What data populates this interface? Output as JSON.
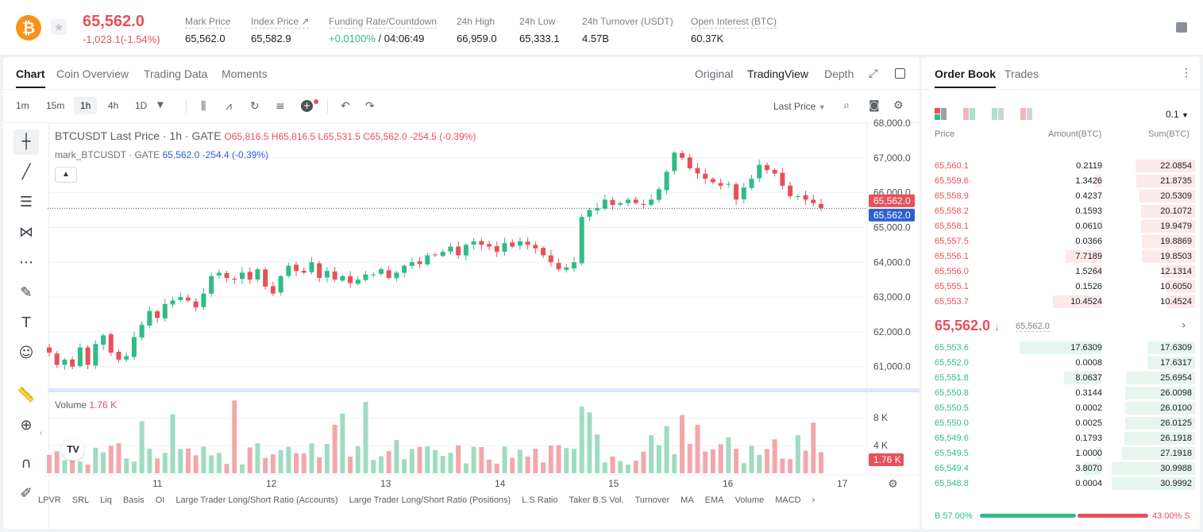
{
  "ticker": {
    "icon": "bitcoin-icon",
    "last_price": "65,562.0",
    "change": "-1,023.1(-1.54%)",
    "stats": [
      {
        "label": "Mark Price",
        "value": "65,562.0"
      },
      {
        "label": "Index Price ↗",
        "value": "65,582.9"
      },
      {
        "label": "Funding Rate/Countdown",
        "value_green": "+0.0100%",
        "value": " / 04:06:49"
      },
      {
        "label": "24h High",
        "value": "66,959.0"
      },
      {
        "label": "24h Low",
        "value": "65,333.1"
      },
      {
        "label": "24h Turnover (USDT)",
        "value": "4.57B"
      },
      {
        "label": "Open Interest (BTC)",
        "value": "60.37K"
      }
    ]
  },
  "chart_panel": {
    "tabs": [
      "Chart",
      "Coin Overview",
      "Trading Data",
      "Moments"
    ],
    "views": [
      "Original",
      "TradingView",
      "Depth"
    ],
    "active_view": "TradingView",
    "timeframes": [
      "1m",
      "15m",
      "1h",
      "4h",
      "1D"
    ],
    "active_timeframe": "1h",
    "price_type": "Last Price",
    "legend_title": "BTCUSDT Last Price · 1h · GATE",
    "legend_ohlc": "O65,816.5 H65,816.5 L65,531.5 C65,562.0 -254.5 (-0.39%)",
    "legend_mark_label": "mark_BTCUSDT · GATE",
    "legend_mark_values": "65,562.0 -254.4 (-0.39%)",
    "volume_label": "Volume",
    "volume_value": "1.76 K",
    "price_ticks": [
      "68,000.0",
      "67,000.0",
      "66,000.0",
      "65,000.0",
      "64,000.0",
      "63,000.0",
      "62,000.0",
      "61,000.0"
    ],
    "last_price_tag": "65,562.0",
    "mark_price_tag": "65,562.0",
    "volume_ticks": [
      "8 K",
      "4 K"
    ],
    "volume_tag": "1.76 K",
    "date_ticks": [
      "11",
      "12",
      "13",
      "14",
      "15",
      "16",
      "17"
    ],
    "indicators": [
      "LPVR",
      "SRL",
      "Liq",
      "Basis",
      "OI",
      "Large Trader Long/Short Ratio (Accounts)",
      "Large Trader Long/Short Ratio (Positions)",
      "L.S Ratio",
      "Taker B.S Vol.",
      "Turnover",
      "MA",
      "EMA",
      "Volume",
      "MACD"
    ]
  },
  "chart_data": {
    "type": "candlestick",
    "x_ticks": [
      "11",
      "12",
      "13",
      "14",
      "15",
      "16",
      "17"
    ],
    "ylim": [
      60400,
      68000
    ],
    "close_path": [
      61400,
      61050,
      61200,
      61000,
      61550,
      61050,
      61650,
      61900,
      61400,
      61200,
      61300,
      61850,
      62200,
      62600,
      62400,
      62800,
      62900,
      63000,
      62900,
      62700,
      63100,
      63600,
      63700,
      63550,
      63500,
      63700,
      63500,
      63800,
      63300,
      63100,
      63600,
      63900,
      63750,
      63700,
      64000,
      63550,
      63750,
      63500,
      63600,
      63400,
      63500,
      63650,
      63650,
      63800,
      63550,
      63700,
      63900,
      64000,
      63950,
      64200,
      64200,
      64300,
      64450,
      64200,
      64500,
      64600,
      64500,
      64450,
      64300,
      64550,
      64450,
      64600,
      64500,
      64400,
      64200,
      64000,
      63800,
      63850,
      64000,
      65300,
      65500,
      65550,
      65800,
      65650,
      65700,
      65800,
      65700,
      65650,
      65800,
      66100,
      66600,
      67150,
      67000,
      66700,
      66550,
      66400,
      66300,
      66200,
      66250,
      65800,
      66150,
      66400,
      66800,
      66650,
      66550,
      66200,
      65900,
      65900,
      65800,
      65700,
      65562
    ],
    "volume_ticks": [
      "8 K",
      "4 K"
    ]
  },
  "order_book": {
    "tabs": [
      "Order Book",
      "Trades"
    ],
    "precision": "0.1",
    "headers": [
      "Price",
      "Amount(BTC)",
      "Sum(BTC)"
    ],
    "asks": [
      {
        "price": "65,560.1",
        "amount": "0.2119",
        "sum": "22.0854"
      },
      {
        "price": "65,559.6",
        "amount": "1.3426",
        "sum": "21.8735"
      },
      {
        "price": "65,558.9",
        "amount": "0.4237",
        "sum": "20.5309"
      },
      {
        "price": "65,558.2",
        "amount": "0.1593",
        "sum": "20.1072"
      },
      {
        "price": "65,558.1",
        "amount": "0.0610",
        "sum": "19.9479"
      },
      {
        "price": "65,557.5",
        "amount": "0.0366",
        "sum": "19.8869"
      },
      {
        "price": "65,556.1",
        "amount": "7.7189",
        "sum": "19.8503"
      },
      {
        "price": "65,556.0",
        "amount": "1.5264",
        "sum": "12.1314"
      },
      {
        "price": "65,555.1",
        "amount": "0.1526",
        "sum": "10.6050"
      },
      {
        "price": "65,553.7",
        "amount": "10.4524",
        "sum": "10.4524"
      }
    ],
    "mid_price": "65,562.0",
    "mid_arrow": "↓",
    "mark_price": "65,562.0",
    "bids": [
      {
        "price": "65,553.6",
        "amount": "17.6309",
        "sum": "17.6309"
      },
      {
        "price": "65,552.0",
        "amount": "0.0008",
        "sum": "17.6317"
      },
      {
        "price": "65,551.8",
        "amount": "8.0637",
        "sum": "25.6954"
      },
      {
        "price": "65,550.8",
        "amount": "0.3144",
        "sum": "26.0098"
      },
      {
        "price": "65,550.5",
        "amount": "0.0002",
        "sum": "26.0100"
      },
      {
        "price": "65,550.0",
        "amount": "0.0025",
        "sum": "26.0125"
      },
      {
        "price": "65,549.6",
        "amount": "0.1793",
        "sum": "26.1918"
      },
      {
        "price": "65,549.5",
        "amount": "1.0000",
        "sum": "27.1918"
      },
      {
        "price": "65,549.4",
        "amount": "3.8070",
        "sum": "30.9988"
      },
      {
        "price": "65,548.8",
        "amount": "0.0004",
        "sum": "30.9992"
      }
    ],
    "buy_ratio": "B 57.00%",
    "sell_ratio": "43.00% S",
    "buy_fraction": 0.57
  },
  "colors": {
    "up": "#2fbd85",
    "down": "#e8505b",
    "mark": "#2c5fd3"
  }
}
